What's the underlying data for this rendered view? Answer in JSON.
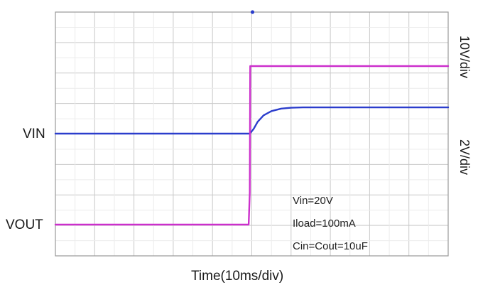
{
  "chart_data": {
    "type": "line",
    "title": "",
    "xlabel": "Time(10ms/div)",
    "grid": true,
    "grid_divisions": {
      "x": 10,
      "y": 8
    },
    "trigger_marker": "top-center",
    "xlim": [
      0,
      100
    ],
    "x_unit": "ms",
    "series": [
      {
        "name": "VIN",
        "color": "#2b3dcc",
        "scale_label": "10V/div",
        "points": [
          [
            0,
            0
          ],
          [
            49,
            0
          ],
          [
            49.5,
            0
          ],
          [
            50.5,
            1.6
          ],
          [
            51.5,
            3.9
          ],
          [
            53,
            6.0
          ],
          [
            55,
            7.4
          ],
          [
            57.5,
            8.2
          ],
          [
            60,
            8.5
          ],
          [
            63,
            8.6
          ],
          [
            100,
            8.6
          ]
        ]
      },
      {
        "name": "VOUT",
        "color": "#cc2fcc",
        "scale_label": "2V/div",
        "points": [
          [
            0,
            0
          ],
          [
            49.2,
            0
          ],
          [
            49.5,
            2.1
          ],
          [
            49.6,
            10.4
          ],
          [
            50,
            10.4
          ],
          [
            100,
            10.4
          ]
        ]
      }
    ],
    "annotations": [
      "Vin=20V",
      "Iload=100mA",
      "Cin=Cout=10uF"
    ]
  }
}
